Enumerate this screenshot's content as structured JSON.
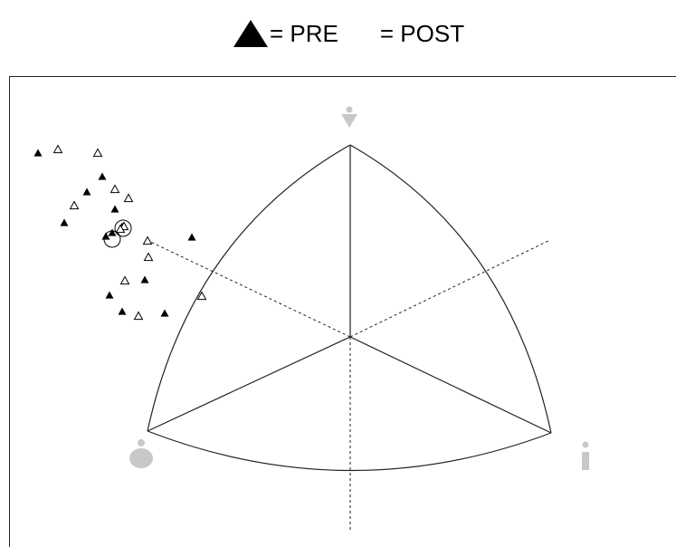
{
  "legend": {
    "pre_symbol": "▲",
    "pre_text": "= PRE",
    "post_text": "= POST"
  },
  "colors": {
    "line": "#222222",
    "icon": "#c8c8c8",
    "pre_marker": "#000000",
    "post_marker": "#000000"
  },
  "icons": {
    "top": "standing-person-icon",
    "left": "round-person-icon",
    "right": "slim-person-icon"
  }
}
